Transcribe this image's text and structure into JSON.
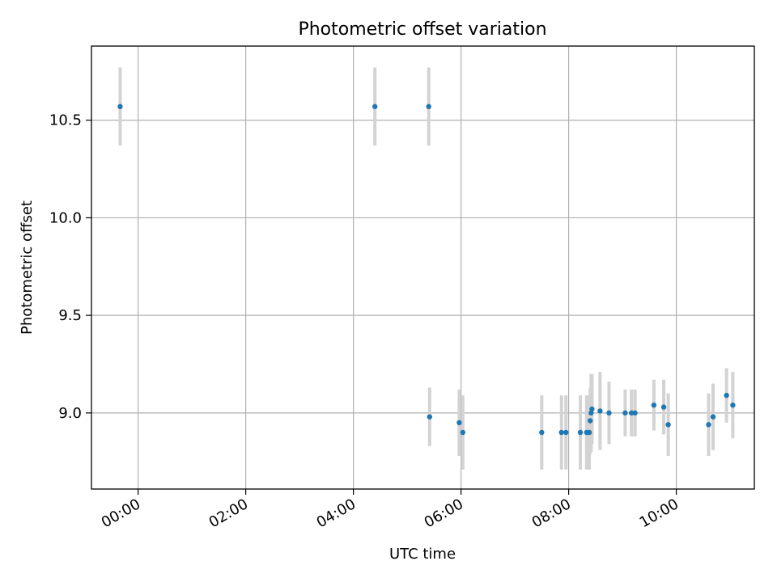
{
  "chart_data": {
    "type": "scatter",
    "title": "Photometric offset variation",
    "xlabel": "UTC time",
    "ylabel": "Photometric offset",
    "x_axis_type": "time",
    "xlim": [
      "-00:52",
      "11:27"
    ],
    "ylim": [
      8.61,
      10.88
    ],
    "xticks": [
      "00:00",
      "02:00",
      "04:00",
      "06:00",
      "08:00",
      "10:00"
    ],
    "yticks": [
      "9.0",
      "9.5",
      "10.0",
      "10.5"
    ],
    "grid": true,
    "legend": "none",
    "marker_color": "#1f77b4",
    "errorbar_color": "#d3d3d3",
    "points": [
      {
        "x": "-00:20",
        "y": 10.57,
        "err": 0.2
      },
      {
        "x": "04:24",
        "y": 10.57,
        "err": 0.2
      },
      {
        "x": "05:24",
        "y": 10.57,
        "err": 0.2
      },
      {
        "x": "05:25",
        "y": 8.98,
        "err": 0.15
      },
      {
        "x": "05:58",
        "y": 8.95,
        "err": 0.17
      },
      {
        "x": "06:02",
        "y": 8.9,
        "err": 0.19
      },
      {
        "x": "07:30",
        "y": 8.9,
        "err": 0.19
      },
      {
        "x": "07:52",
        "y": 8.9,
        "err": 0.19
      },
      {
        "x": "07:57",
        "y": 8.9,
        "err": 0.19
      },
      {
        "x": "08:13",
        "y": 8.9,
        "err": 0.19
      },
      {
        "x": "08:20",
        "y": 8.9,
        "err": 0.19
      },
      {
        "x": "08:23",
        "y": 8.9,
        "err": 0.19
      },
      {
        "x": "08:24",
        "y": 8.96,
        "err": 0.17
      },
      {
        "x": "08:25",
        "y": 9.0,
        "err": 0.2
      },
      {
        "x": "08:26",
        "y": 9.02,
        "err": 0.18
      },
      {
        "x": "08:35",
        "y": 9.01,
        "err": 0.2
      },
      {
        "x": "08:45",
        "y": 9.0,
        "err": 0.16
      },
      {
        "x": "09:03",
        "y": 9.0,
        "err": 0.12
      },
      {
        "x": "09:10",
        "y": 9.0,
        "err": 0.12
      },
      {
        "x": "09:14",
        "y": 9.0,
        "err": 0.12
      },
      {
        "x": "09:35",
        "y": 9.04,
        "err": 0.13
      },
      {
        "x": "09:46",
        "y": 9.03,
        "err": 0.14
      },
      {
        "x": "09:51",
        "y": 8.94,
        "err": 0.16
      },
      {
        "x": "10:36",
        "y": 8.94,
        "err": 0.16
      },
      {
        "x": "10:41",
        "y": 8.98,
        "err": 0.17
      },
      {
        "x": "10:56",
        "y": 9.09,
        "err": 0.14
      },
      {
        "x": "11:03",
        "y": 9.04,
        "err": 0.17
      }
    ]
  }
}
